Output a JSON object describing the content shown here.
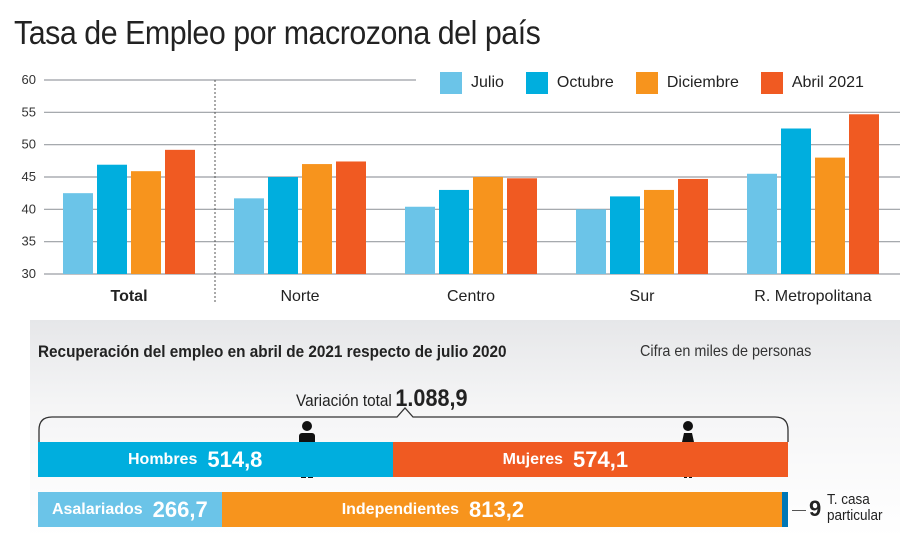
{
  "chart_data": {
    "type": "bar",
    "title": "Tasa de Empleo por macrozona del país",
    "categories": [
      "Total",
      "Norte",
      "Centro",
      "Sur",
      "R. Metropolitana"
    ],
    "series": [
      {
        "name": "Julio",
        "color": "#6bc4e8",
        "values": [
          42.5,
          41.7,
          40.4,
          40.0,
          45.5
        ]
      },
      {
        "name": "Octubre",
        "color": "#00aede",
        "values": [
          46.9,
          45.0,
          43.0,
          42.0,
          52.5
        ]
      },
      {
        "name": "Diciembre",
        "color": "#f7941d",
        "values": [
          45.9,
          47.0,
          45.0,
          43.0,
          48.0
        ]
      },
      {
        "name": "Abril 2021",
        "color": "#f05a22",
        "values": [
          49.2,
          47.4,
          44.8,
          44.7,
          54.7
        ]
      }
    ],
    "ylim": [
      30,
      60
    ],
    "yticks": [
      "30",
      "35",
      "40",
      "45",
      "50",
      "55",
      "60"
    ],
    "grid": true,
    "legend": "top-right",
    "xlabel": "",
    "ylabel": ""
  },
  "recovery": {
    "title": "Recuperación del empleo en abril de 2021 respecto de julio 2020",
    "unit": "Cifra en miles de personas",
    "total_label": "Variación total",
    "total_value": "1.088,9",
    "total": 1088.9,
    "gender": [
      {
        "label": "Hombres",
        "value": "514,8",
        "num": 514.8,
        "color": "#00aede"
      },
      {
        "label": "Mujeres",
        "value": "574,1",
        "num": 574.1,
        "color": "#f05a22"
      }
    ],
    "type": [
      {
        "label": "Asalariados",
        "value": "266,7",
        "num": 266.7,
        "color": "#6bc4e8"
      },
      {
        "label": "Independientes",
        "value": "813,2",
        "num": 813.2,
        "color": "#f7941d"
      },
      {
        "label": "",
        "value": "9",
        "num": 9,
        "color": "#0077b6"
      }
    ],
    "casa_label_1": "T. casa",
    "casa_label_2": "particular"
  }
}
